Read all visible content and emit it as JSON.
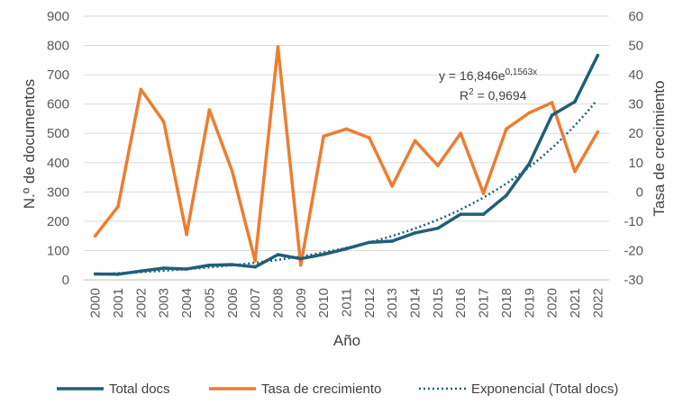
{
  "chart_data": {
    "type": "line",
    "title": "",
    "xlabel": "Año",
    "ylabel": "N.º de documentos",
    "y2label": "Tasa de crecimiento",
    "ylim": [
      0,
      900
    ],
    "y2lim": [
      -30,
      60
    ],
    "yticks": [
      0,
      100,
      200,
      300,
      400,
      500,
      600,
      700,
      800,
      900
    ],
    "y2ticks": [
      -30,
      -20,
      -10,
      0,
      10,
      20,
      30,
      40,
      50,
      60
    ],
    "grid": "horizontal",
    "legend": "bottom",
    "categories": [
      "2000",
      "2001",
      "2002",
      "2003",
      "2004",
      "2005",
      "2006",
      "2007",
      "2008",
      "2009",
      "2010",
      "2011",
      "2012",
      "2013",
      "2014",
      "2015",
      "2016",
      "2017",
      "2018",
      "2019",
      "2020",
      "2021",
      "2022"
    ],
    "series": [
      {
        "name": "Total docs",
        "axis": "left",
        "color": "#1f5f7a",
        "values": [
          20,
          19,
          30,
          40,
          37,
          50,
          52,
          44,
          86,
          72,
          87,
          106,
          128,
          132,
          160,
          176,
          224,
          224,
          288,
          396,
          562,
          608,
          766
        ]
      },
      {
        "name": "Tasa de crecimiento",
        "axis": "right",
        "color": "#ed7d31",
        "values": [
          -15,
          -5,
          35,
          24,
          -14.5,
          28,
          7,
          -23.5,
          49.5,
          -25,
          19,
          21.5,
          18.5,
          2,
          17.5,
          9,
          20,
          -0.5,
          21.5,
          27,
          30.5,
          7,
          20.5
        ]
      },
      {
        "name": "Exponencial (Total docs)",
        "axis": "left",
        "color": "#1f5f7a",
        "style": "dotted",
        "trend": "exponential"
      }
    ],
    "annotation": {
      "equation_prefix": "y = 16,846e",
      "equation_exp": "0,1563x",
      "r2_prefix": "R",
      "r2_sup": "2",
      "r2_value": " = 0,9694"
    }
  }
}
